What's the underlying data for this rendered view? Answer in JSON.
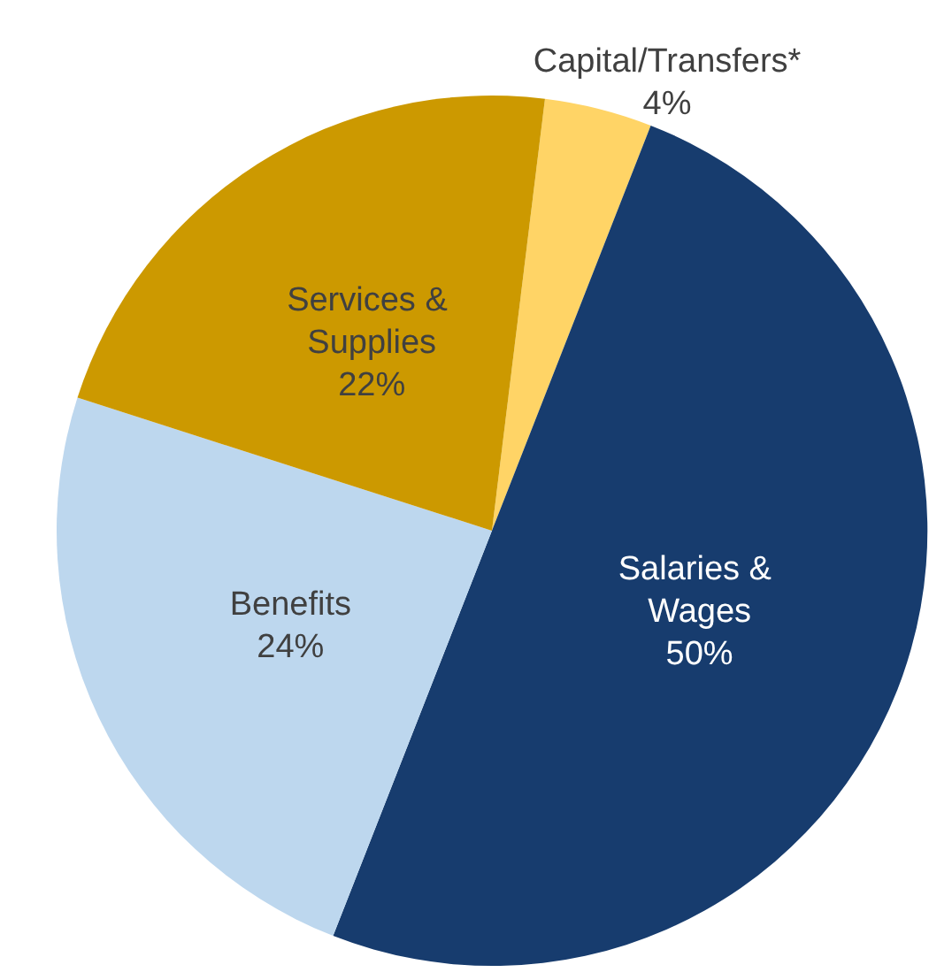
{
  "chart_data": {
    "type": "pie",
    "categories": [
      "Capital/Transfers*",
      "Salaries & Wages",
      "Benefits",
      "Services & Supplies"
    ],
    "values": [
      4,
      50,
      24,
      22
    ],
    "colors": [
      "#ffd466",
      "#173c6e",
      "#bdd7ee",
      "#cc9900"
    ],
    "value_labels": [
      "4%",
      "50%",
      "24%",
      "22%"
    ],
    "legend": false
  }
}
